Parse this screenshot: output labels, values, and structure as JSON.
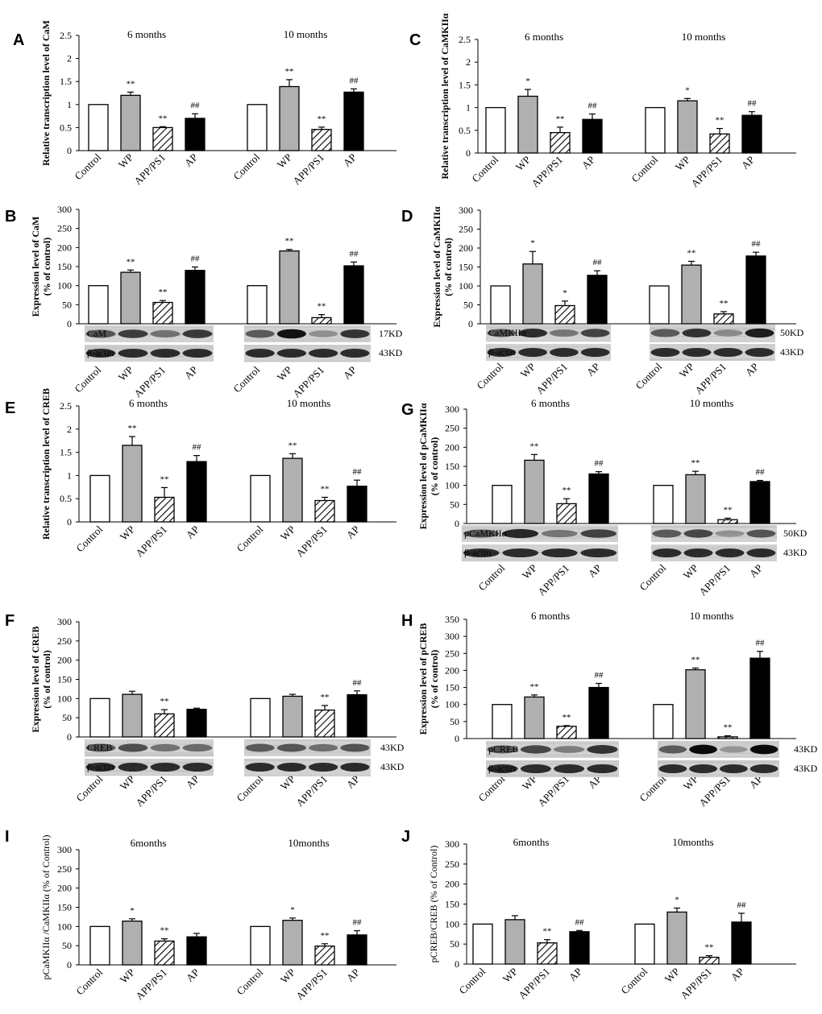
{
  "colors": {
    "control": "#ffffff",
    "wp": "#b0b0b0",
    "appps1": "#ffffff",
    "ap": "#000000"
  },
  "chart_data": [
    {
      "id": "A",
      "type": "bar",
      "letter": "A",
      "ylabel": "Relative transcription level of CaM",
      "ylabel_bold": true,
      "ylim": [
        0,
        2.5
      ],
      "yticks": [
        "0",
        "0.5",
        "1",
        "1.5",
        "2",
        "2.5"
      ],
      "groups": [
        "6 months",
        "10 months"
      ],
      "categories": [
        "Control",
        "WP",
        "APP/PS1",
        "AP"
      ],
      "values": [
        [
          1,
          1.2,
          0.5,
          0.7
        ],
        [
          1,
          1.39,
          0.46,
          1.27
        ]
      ],
      "errors": [
        [
          0,
          0.07,
          0.02,
          0.1
        ],
        [
          0,
          0.15,
          0.05,
          0.07
        ]
      ],
      "marks": [
        [
          "",
          "**",
          "**",
          "##"
        ],
        [
          "",
          "**",
          "**",
          "##"
        ]
      ],
      "blot": null
    },
    {
      "id": "C",
      "type": "bar",
      "letter": "C",
      "ylabel": "Relative transcription level of CaMKIIα",
      "ylabel_bold": true,
      "ylim": [
        0,
        2.5
      ],
      "yticks": [
        "0",
        "0.5",
        "1",
        "1.5",
        "2",
        "2.5"
      ],
      "groups": [
        "6 months",
        "10 months"
      ],
      "categories": [
        "Control",
        "WP",
        "APP/PS1",
        "AP"
      ],
      "values": [
        [
          1,
          1.25,
          0.45,
          0.74
        ],
        [
          1,
          1.15,
          0.42,
          0.83
        ]
      ],
      "errors": [
        [
          0,
          0.15,
          0.12,
          0.12
        ],
        [
          0,
          0.05,
          0.12,
          0.08
        ]
      ],
      "marks": [
        [
          "",
          "*",
          "**",
          "##"
        ],
        [
          "",
          "*",
          "**",
          "##"
        ]
      ],
      "blot": null
    },
    {
      "id": "B",
      "type": "bar",
      "letter": "B",
      "ylabel": "Expression level of CaM",
      "ylabel2": "(% of control)",
      "ylabel_bold": true,
      "ylim": [
        0,
        300
      ],
      "yticks": [
        "0",
        "50",
        "100",
        "150",
        "200",
        "250",
        "300"
      ],
      "groups": [
        "",
        ""
      ],
      "categories": [
        "Control",
        "WP",
        "APP/PS1",
        "AP"
      ],
      "values": [
        [
          100,
          135,
          56,
          140
        ],
        [
          100,
          191,
          16,
          152
        ]
      ],
      "errors": [
        [
          0,
          6,
          5,
          9
        ],
        [
          0,
          4,
          8,
          10
        ]
      ],
      "marks": [
        [
          "",
          "**",
          "**",
          "##"
        ],
        [
          "",
          "**",
          "**",
          "##"
        ]
      ],
      "blot": {
        "rows": [
          "CaM",
          "β-actin"
        ],
        "kd": [
          "17KD",
          "43KD"
        ]
      }
    },
    {
      "id": "D",
      "type": "bar",
      "letter": "D",
      "ylabel": "Expression level of CaMKIIα",
      "ylabel2": "(% of control)",
      "ylabel_bold": true,
      "ylim": [
        0,
        300
      ],
      "yticks": [
        "0",
        "50",
        "100",
        "150",
        "200",
        "250",
        "300"
      ],
      "groups": [
        "",
        ""
      ],
      "categories": [
        "Control",
        "WP",
        "APP/PS1",
        "AP"
      ],
      "values": [
        [
          100,
          158,
          48,
          128
        ],
        [
          100,
          155,
          26,
          179
        ]
      ],
      "errors": [
        [
          0,
          33,
          12,
          12
        ],
        [
          0,
          10,
          6,
          10
        ]
      ],
      "marks": [
        [
          "",
          "*",
          "*",
          "##"
        ],
        [
          "",
          "**",
          "**",
          "##"
        ]
      ],
      "blot": {
        "rows": [
          "CaMKIIα",
          "β-actin"
        ],
        "kd": [
          "50KD",
          "43KD"
        ]
      }
    },
    {
      "id": "E",
      "type": "bar",
      "letter": "E",
      "ylabel": "Relative transcription level of CREB",
      "ylabel_bold": true,
      "ylim": [
        0,
        2.5
      ],
      "yticks": [
        "0",
        "0.5",
        "1",
        "1.5",
        "2",
        "2.5"
      ],
      "groups": [
        "6 months",
        "10 months"
      ],
      "categories": [
        "Control",
        "WP",
        "APP/PS1",
        "AP"
      ],
      "values": [
        [
          1,
          1.65,
          0.53,
          1.3
        ],
        [
          1,
          1.37,
          0.46,
          0.77
        ]
      ],
      "errors": [
        [
          0,
          0.19,
          0.21,
          0.13
        ],
        [
          0,
          0.1,
          0.07,
          0.13
        ]
      ],
      "marks": [
        [
          "",
          "**",
          "**",
          "##"
        ],
        [
          "",
          "**",
          "**",
          "##"
        ]
      ],
      "blot": null
    },
    {
      "id": "G",
      "type": "bar",
      "letter": "G",
      "ylabel": "Expression level of pCaMKIIα",
      "ylabel2": "(% of control)",
      "ylabel_bold": true,
      "ylim": [
        0,
        300
      ],
      "yticks": [
        "0",
        "50",
        "100",
        "150",
        "200",
        "250",
        "300"
      ],
      "groups": [
        "6 months",
        "10 months"
      ],
      "categories": [
        "Control",
        "WP",
        "APP/PS1",
        "AP"
      ],
      "values": [
        [
          100,
          166,
          52,
          130
        ],
        [
          100,
          128,
          10,
          110
        ]
      ],
      "errors": [
        [
          0,
          15,
          13,
          6
        ],
        [
          0,
          9,
          4,
          3
        ]
      ],
      "marks": [
        [
          "",
          "**",
          "**",
          "##"
        ],
        [
          "",
          "**",
          "**",
          "##"
        ]
      ],
      "blot": {
        "rows": [
          "pCaMKIIα",
          "β-actin"
        ],
        "kd": [
          "50KD",
          "43KD"
        ]
      }
    },
    {
      "id": "F",
      "type": "bar",
      "letter": "F",
      "ylabel": "Expression level of CREB",
      "ylabel2": "(% of control)",
      "ylabel_bold": true,
      "ylim": [
        0,
        300
      ],
      "yticks": [
        "0",
        "50",
        "100",
        "150",
        "200",
        "250",
        "300"
      ],
      "groups": [
        "",
        ""
      ],
      "categories": [
        "Control",
        "WP",
        "APP/PS1",
        "AP"
      ],
      "values": [
        [
          100,
          111,
          60,
          72
        ],
        [
          100,
          106,
          70,
          110
        ]
      ],
      "errors": [
        [
          0,
          8,
          11,
          3
        ],
        [
          0,
          5,
          12,
          10
        ]
      ],
      "marks": [
        [
          "",
          "",
          "**",
          ""
        ],
        [
          "",
          "",
          "**",
          "##"
        ]
      ],
      "blot": {
        "rows": [
          "CREB",
          "β-actin"
        ],
        "kd": [
          "43KD",
          "43KD"
        ]
      }
    },
    {
      "id": "H",
      "type": "bar",
      "letter": "H",
      "ylabel": "Expression level of pCREB",
      "ylabel2": "(% of control)",
      "ylabel_bold": true,
      "ylim": [
        0,
        350
      ],
      "yticks": [
        "0",
        "50",
        "100",
        "150",
        "200",
        "250",
        "300",
        "350"
      ],
      "groups": [
        "6 months",
        "10 months"
      ],
      "categories": [
        "Control",
        "WP",
        "APP/PS1",
        "AP"
      ],
      "values": [
        [
          100,
          122,
          36,
          150
        ],
        [
          100,
          202,
          5,
          236
        ]
      ],
      "errors": [
        [
          0,
          6,
          2,
          12
        ],
        [
          0,
          5,
          3,
          20
        ]
      ],
      "marks": [
        [
          "",
          "**",
          "**",
          "##"
        ],
        [
          "",
          "**",
          "**",
          "##"
        ]
      ],
      "blot": {
        "rows": [
          "pCREB",
          "β-actin"
        ],
        "kd": [
          "43KD",
          "43KD"
        ]
      }
    },
    {
      "id": "I",
      "type": "bar",
      "letter": "I",
      "ylabel": "pCaMKIIα /CaMKIIα (% of Control)",
      "ylabel_bold": false,
      "ylim": [
        0,
        300
      ],
      "yticks": [
        "0",
        "50",
        "100",
        "150",
        "200",
        "250",
        "300"
      ],
      "groups": [
        "6months",
        "10months"
      ],
      "categories": [
        "Control",
        "WP",
        "APP/PS1",
        "AP"
      ],
      "values": [
        [
          100,
          114,
          62,
          73
        ],
        [
          100,
          116,
          49,
          78
        ]
      ],
      "errors": [
        [
          0,
          6,
          6,
          9
        ],
        [
          0,
          6,
          6,
          11
        ]
      ],
      "marks": [
        [
          "",
          "*",
          "**",
          ""
        ],
        [
          "",
          "*",
          "**",
          "##"
        ]
      ],
      "blot": null
    },
    {
      "id": "J",
      "type": "bar",
      "letter": "J",
      "ylabel": "pCREB/CREB (% of Control)",
      "ylabel_bold": false,
      "ylim": [
        0,
        300
      ],
      "yticks": [
        "0",
        "50",
        "100",
        "150",
        "200",
        "250",
        "300"
      ],
      "groups": [
        "6months",
        "10months"
      ],
      "categories": [
        "Control",
        "WP",
        "APP/PS1",
        "AP"
      ],
      "values": [
        [
          100,
          111,
          53,
          81
        ],
        [
          100,
          130,
          17,
          105
        ]
      ],
      "errors": [
        [
          0,
          10,
          8,
          3
        ],
        [
          0,
          10,
          4,
          22
        ]
      ],
      "marks": [
        [
          "",
          "",
          "**",
          "##"
        ],
        [
          "",
          "*",
          "**",
          "##"
        ]
      ],
      "blot": null
    }
  ]
}
